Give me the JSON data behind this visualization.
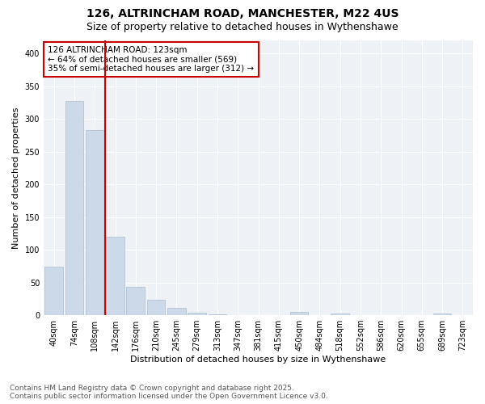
{
  "title_line1": "126, ALTRINCHAM ROAD, MANCHESTER, M22 4US",
  "title_line2": "Size of property relative to detached houses in Wythenshawe",
  "xlabel": "Distribution of detached houses by size in Wythenshawe",
  "ylabel": "Number of detached properties",
  "categories": [
    "40sqm",
    "74sqm",
    "108sqm",
    "142sqm",
    "176sqm",
    "210sqm",
    "245sqm",
    "279sqm",
    "313sqm",
    "347sqm",
    "381sqm",
    "415sqm",
    "450sqm",
    "484sqm",
    "518sqm",
    "552sqm",
    "586sqm",
    "620sqm",
    "655sqm",
    "689sqm",
    "723sqm"
  ],
  "values": [
    74,
    327,
    283,
    120,
    43,
    24,
    11,
    4,
    1,
    0,
    0,
    0,
    5,
    0,
    2,
    0,
    0,
    0,
    0,
    2,
    0
  ],
  "bar_color": "#ccd9e8",
  "bar_edge_color": "#aabcce",
  "vline_x": 2.5,
  "vline_color": "#cc0000",
  "annotation_text": "126 ALTRINCHAM ROAD: 123sqm\n← 64% of detached houses are smaller (569)\n35% of semi-detached houses are larger (312) →",
  "annotation_box_facecolor": "#ffffff",
  "annotation_box_edgecolor": "#cc0000",
  "ylim": [
    0,
    420
  ],
  "yticks": [
    0,
    50,
    100,
    150,
    200,
    250,
    300,
    350,
    400
  ],
  "bg_color": "#ffffff",
  "plot_bg_color": "#eef2f7",
  "grid_color": "#ffffff",
  "footer_line1": "Contains HM Land Registry data © Crown copyright and database right 2025.",
  "footer_line2": "Contains public sector information licensed under the Open Government Licence v3.0.",
  "title_fontsize": 10,
  "subtitle_fontsize": 9,
  "axis_label_fontsize": 8,
  "tick_fontsize": 7,
  "annotation_fontsize": 7.5,
  "footer_fontsize": 6.5
}
